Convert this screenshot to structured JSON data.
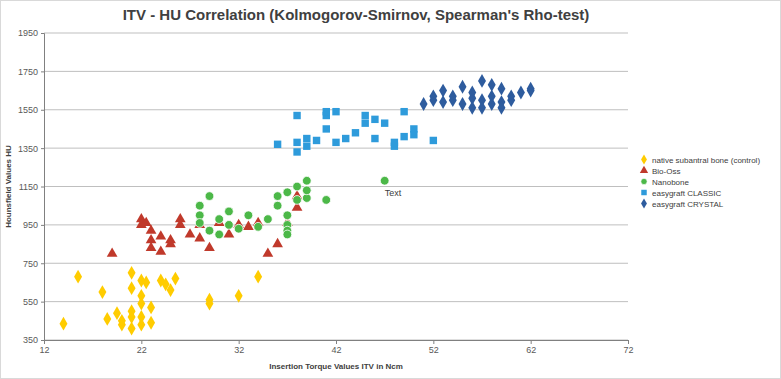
{
  "chart_data": {
    "type": "scatter",
    "title": "ITV - HU Correlation (Kolmogorov-Smirnov, Spearman's Rho-test)",
    "x_label": "Insertion Torque Values ITV in Ncm",
    "y_label": "Hounsfield Values HU",
    "xlim": [
      12,
      72
    ],
    "xticks": [
      12,
      22,
      32,
      42,
      52,
      62,
      72
    ],
    "ylim": [
      350,
      1950
    ],
    "yticks": [
      350,
      550,
      750,
      950,
      1150,
      1350,
      1550,
      1750,
      1950
    ],
    "grid": true,
    "legend": "right",
    "annotations": [
      {
        "text": "Text",
        "x": 47,
        "y": 1100
      }
    ],
    "series": [
      {
        "name": "native subantral bone (control)",
        "color": "#ffcc00",
        "marker": "diamond",
        "x": [
          14,
          15.5,
          18,
          18.5,
          19.5,
          20,
          20,
          21,
          21,
          21,
          21,
          21,
          22,
          22,
          22,
          22,
          22,
          22.5,
          23,
          23,
          24,
          24.5,
          25,
          25.5,
          29,
          29,
          32,
          34
        ],
        "values": [
          435,
          680,
          600,
          460,
          490,
          450,
          430,
          700,
          620,
          500,
          470,
          410,
          660,
          580,
          540,
          470,
          430,
          650,
          520,
          440,
          660,
          640,
          610,
          670,
          560,
          540,
          580,
          680
        ]
      },
      {
        "name": "Bio-Oss",
        "color": "#c0392b",
        "marker": "triangle",
        "x": [
          19,
          22,
          22,
          22.5,
          23,
          23,
          23,
          24,
          24,
          25,
          25,
          26,
          26,
          27,
          28,
          28,
          29,
          30,
          31,
          32,
          33,
          34,
          35,
          36,
          37,
          38,
          38
        ],
        "values": [
          800,
          980,
          950,
          960,
          920,
          870,
          830,
          890,
          810,
          870,
          850,
          980,
          950,
          900,
          880,
          950,
          830,
          960,
          900,
          950,
          940,
          960,
          800,
          850,
          960,
          1040,
          1100
        ]
      },
      {
        "name": "Nanobone",
        "color": "#4cb848",
        "marker": "circle",
        "x": [
          28,
          28,
          28,
          29,
          29,
          30,
          30,
          31,
          31,
          32,
          33,
          34,
          35,
          36,
          36,
          37,
          37,
          37,
          37,
          37,
          38,
          38,
          39,
          39,
          39,
          41,
          47
        ],
        "values": [
          1050,
          1000,
          960,
          1100,
          920,
          980,
          900,
          1020,
          950,
          930,
          1000,
          940,
          980,
          1100,
          1050,
          1120,
          1000,
          950,
          920,
          900,
          1080,
          1150,
          1180,
          1090,
          1130,
          1080,
          1180
        ]
      },
      {
        "name": "easygraft CLASSIC",
        "color": "#2e9bdb",
        "marker": "square",
        "x": [
          36,
          38,
          38,
          38,
          39,
          39,
          40,
          41,
          41,
          41,
          42,
          42,
          43,
          44,
          45,
          45,
          46,
          46,
          47,
          48,
          48,
          49,
          49,
          50,
          50,
          52
        ],
        "values": [
          1370,
          1520,
          1330,
          1380,
          1400,
          1360,
          1390,
          1520,
          1540,
          1450,
          1540,
          1380,
          1400,
          1430,
          1520,
          1480,
          1500,
          1400,
          1480,
          1360,
          1380,
          1410,
          1540,
          1450,
          1420,
          1390
        ]
      },
      {
        "name": "easygraft CRYSTAL",
        "color": "#2e5c9e",
        "marker": "diamond",
        "x": [
          51,
          52,
          52,
          53,
          53,
          54,
          54,
          55,
          55,
          56,
          56,
          56,
          57,
          57,
          57,
          58,
          58,
          58,
          59,
          59,
          59,
          60,
          60,
          61,
          62,
          62
        ],
        "values": [
          1580,
          1600,
          1620,
          1590,
          1650,
          1620,
          1600,
          1580,
          1670,
          1610,
          1640,
          1560,
          1600,
          1700,
          1560,
          1580,
          1680,
          1620,
          1660,
          1590,
          1560,
          1620,
          1600,
          1640,
          1660,
          1650
        ]
      }
    ]
  }
}
